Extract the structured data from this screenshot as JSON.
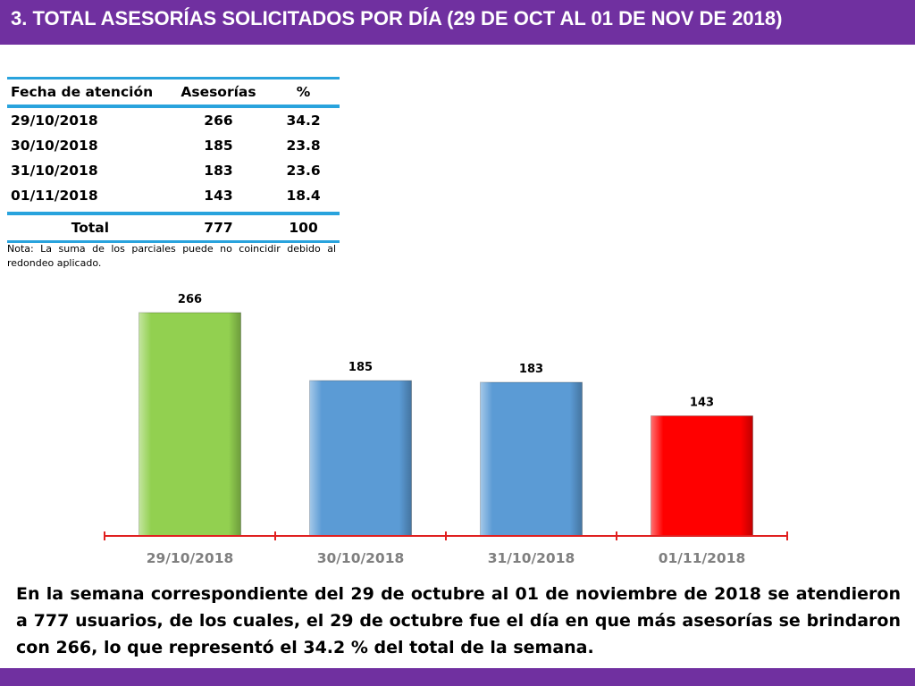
{
  "header": {
    "title": "3.  TOTAL ASESORÍAS SOLICITADOS POR DÍA  (29 DE OCT AL 01 DE NOV DE 2018)"
  },
  "table": {
    "headers": [
      "Fecha de atención",
      "Asesorías",
      "%"
    ],
    "rows": [
      [
        "29/10/2018",
        "266",
        "34.2"
      ],
      [
        "30/10/2018",
        "185",
        "23.8"
      ],
      [
        "31/10/2018",
        "183",
        "23.6"
      ],
      [
        "01/11/2018",
        "143",
        "18.4"
      ]
    ],
    "total": [
      "Total",
      "777",
      "100"
    ]
  },
  "note": "Nota: La suma de los parciales puede no coincidir debido al redondeo aplicado.",
  "chart_data": {
    "type": "bar",
    "categories": [
      "29/10/2018",
      "30/10/2018",
      "31/10/2018",
      "01/11/2018"
    ],
    "values": [
      266,
      185,
      183,
      143
    ],
    "data_labels": [
      "266",
      "185",
      "183",
      "143"
    ],
    "bar_colors": [
      "#92d050",
      "#5b9bd5",
      "#5b9bd5",
      "#ff0000"
    ],
    "axis_color": "#e02020",
    "grid": false,
    "title": "",
    "xlabel": "",
    "ylabel": ""
  },
  "summary": "En la semana correspondiente del 29 de octubre al 01 de noviembre de 2018 se atendieron a 777 usuarios, de los cuales, el 29 de octubre fue el día en que más asesorías se brindaron con 266, lo que representó el 34.2 % del total de la semana."
}
